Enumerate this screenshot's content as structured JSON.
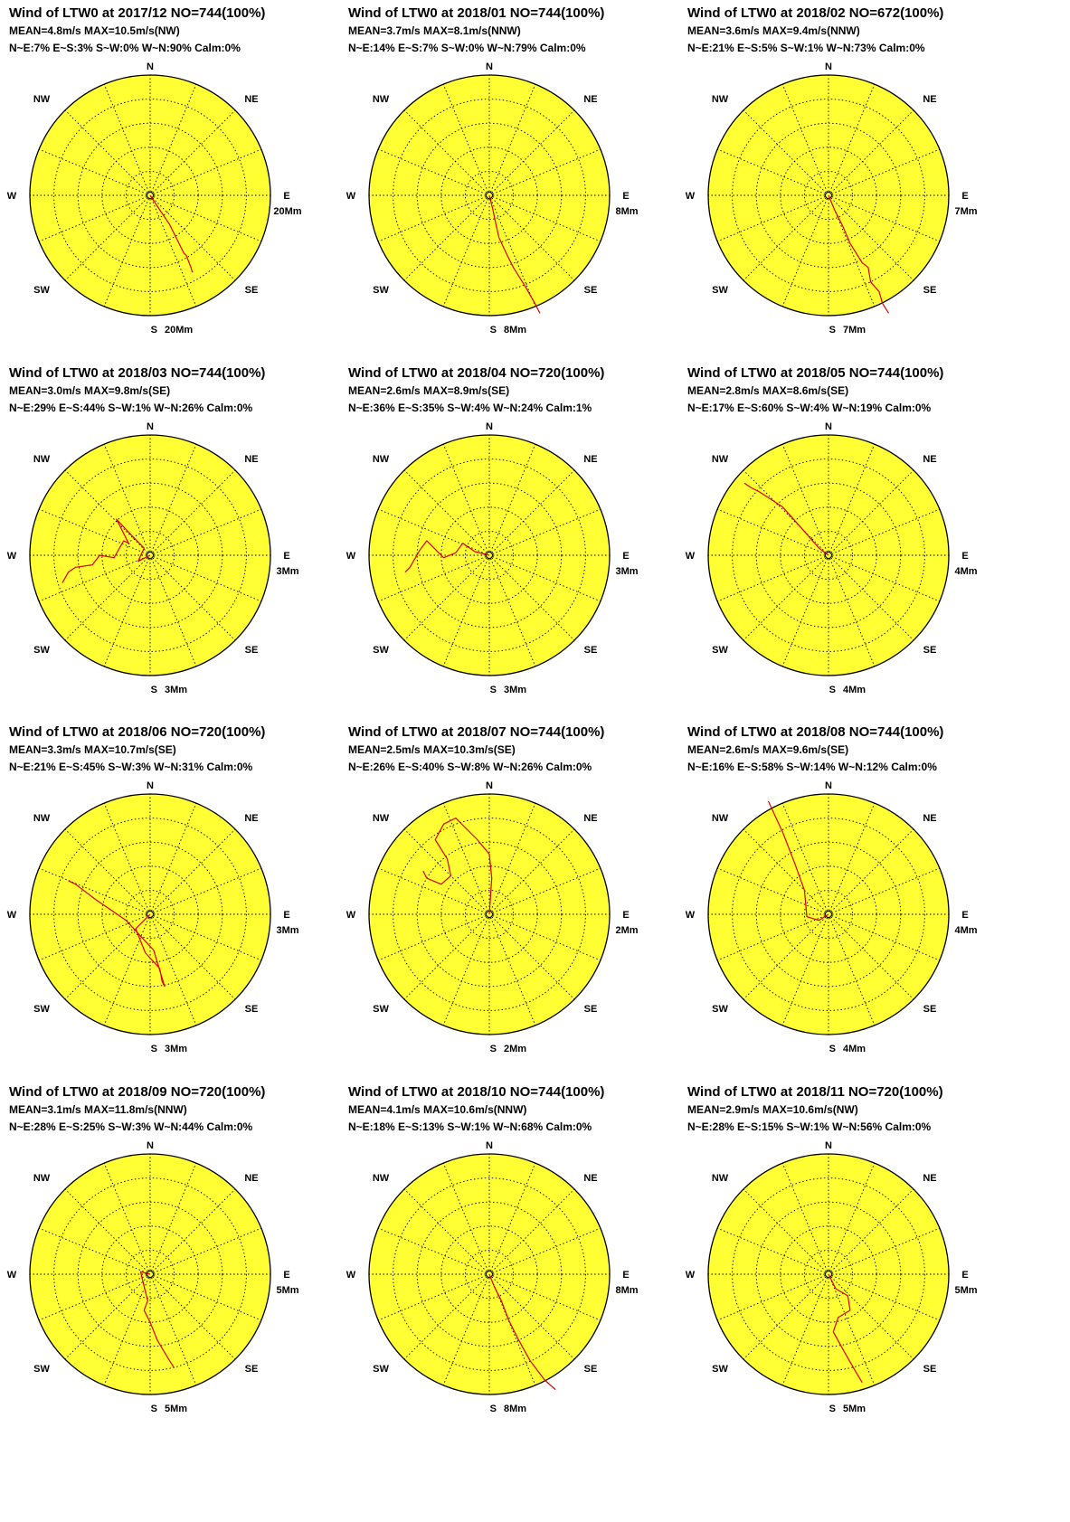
{
  "colors": {
    "rose_fill": "#ffff33",
    "rose_outline": "#000000",
    "grid": "#000000",
    "track": "#dd0000"
  },
  "directions": [
    "N",
    "NE",
    "E",
    "SE",
    "S",
    "SW",
    "W",
    "NW"
  ],
  "chart_data": [
    {
      "type": "polar-wind-run",
      "title": "Wind of LTW0 at 2017/12 NO=744(100%)",
      "stats": "MEAN=4.8m/s MAX=10.5m/s(NW)",
      "quadrants": "N~E:7% E~S:3% S~W:0% W~N:90% Calm:0%",
      "scale_label": "20Mm",
      "track": [
        [
          0,
          0
        ],
        [
          0.08,
          -0.12
        ],
        [
          0.16,
          -0.24
        ],
        [
          0.22,
          -0.36
        ],
        [
          0.28,
          -0.48
        ],
        [
          0.3,
          -0.5
        ],
        [
          0.34,
          -0.6
        ],
        [
          0.35,
          -0.64
        ]
      ]
    },
    {
      "type": "polar-wind-run",
      "title": "Wind of LTW0 at 2018/01 NO=744(100%)",
      "stats": "MEAN=3.7m/s MAX=8.1m/s(NNW)",
      "quadrants": "N~E:14% E~S:7% S~W:0% W~N:79% Calm:0%",
      "scale_label": "8Mm",
      "track": [
        [
          0,
          0
        ],
        [
          0.03,
          -0.12
        ],
        [
          0.05,
          -0.22
        ],
        [
          0.08,
          -0.35
        ],
        [
          0.15,
          -0.5
        ],
        [
          0.2,
          -0.6
        ],
        [
          0.3,
          -0.76
        ],
        [
          0.38,
          -0.9
        ],
        [
          0.42,
          -0.98
        ]
      ]
    },
    {
      "type": "polar-wind-run",
      "title": "Wind of LTW0 at 2018/02 NO=672(100%)",
      "stats": "MEAN=3.6m/s MAX=9.4m/s(NNW)",
      "quadrants": "N~E:21% E~S:5% S~W:1% W~N:73% Calm:0%",
      "scale_label": "7Mm",
      "track": [
        [
          0,
          0
        ],
        [
          0.05,
          -0.12
        ],
        [
          0.12,
          -0.26
        ],
        [
          0.18,
          -0.4
        ],
        [
          0.28,
          -0.56
        ],
        [
          0.33,
          -0.6
        ],
        [
          0.35,
          -0.72
        ],
        [
          0.42,
          -0.8
        ],
        [
          0.45,
          -0.9
        ],
        [
          0.5,
          -0.98
        ]
      ]
    },
    {
      "type": "polar-wind-run",
      "title": "Wind of LTW0 at 2018/03 NO=744(100%)",
      "stats": "MEAN=3.0m/s MAX=9.8m/s(SE)",
      "quadrants": "N~E:29% E~S:44% S~W:1% W~N:26% Calm:0%",
      "scale_label": "3Mm",
      "track": [
        [
          0,
          0
        ],
        [
          -0.1,
          -0.05
        ],
        [
          -0.05,
          0.06
        ],
        [
          -0.15,
          0.16
        ],
        [
          -0.28,
          0.3
        ],
        [
          -0.18,
          0.1
        ],
        [
          -0.22,
          0.12
        ],
        [
          -0.3,
          -0.02
        ],
        [
          -0.42,
          0.0
        ],
        [
          -0.48,
          -0.08
        ],
        [
          -0.62,
          -0.1
        ],
        [
          -0.68,
          -0.14
        ],
        [
          -0.73,
          -0.23
        ]
      ]
    },
    {
      "type": "polar-wind-run",
      "title": "Wind of LTW0 at 2018/04 NO=720(100%)",
      "stats": "MEAN=2.6m/s MAX=8.9m/s(SE)",
      "quadrants": "N~E:36% E~S:35% S~W:4% W~N:24% Calm:1%",
      "scale_label": "3Mm",
      "track": [
        [
          0,
          0
        ],
        [
          -0.12,
          0.03
        ],
        [
          -0.22,
          0.1
        ],
        [
          -0.28,
          0.02
        ],
        [
          -0.38,
          -0.02
        ],
        [
          -0.52,
          0.12
        ],
        [
          -0.58,
          0.04
        ],
        [
          -0.66,
          -0.1
        ],
        [
          -0.7,
          -0.14
        ]
      ]
    },
    {
      "type": "polar-wind-run",
      "title": "Wind of LTW0 at 2018/05 NO=744(100%)",
      "stats": "MEAN=2.8m/s MAX=8.6m/s(SE)",
      "quadrants": "N~E:17% E~S:60% S~W:4% W~N:19% Calm:0%",
      "scale_label": "4Mm",
      "track": [
        [
          0,
          0
        ],
        [
          -0.08,
          0.06
        ],
        [
          -0.22,
          0.22
        ],
        [
          -0.38,
          0.4
        ],
        [
          -0.5,
          0.48
        ],
        [
          -0.58,
          0.53
        ],
        [
          -0.64,
          0.56
        ],
        [
          -0.7,
          0.6
        ]
      ]
    },
    {
      "type": "polar-wind-run",
      "title": "Wind of LTW0 at 2018/06 NO=720(100%)",
      "stats": "MEAN=3.3m/s MAX=10.7m/s(SE)",
      "quadrants": "N~E:21% E~S:45% S~W:3% W~N:31% Calm:0%",
      "scale_label": "3Mm",
      "track": [
        [
          0,
          0
        ],
        [
          -0.12,
          -0.12
        ],
        [
          -0.04,
          -0.32
        ],
        [
          0.08,
          -0.45
        ],
        [
          0.1,
          -0.56
        ],
        [
          0.12,
          -0.6
        ],
        [
          0.03,
          -0.3
        ],
        [
          -0.2,
          -0.05
        ],
        [
          -0.45,
          0.12
        ],
        [
          -0.62,
          0.25
        ],
        [
          -0.68,
          0.28
        ]
      ]
    },
    {
      "type": "polar-wind-run",
      "title": "Wind of LTW0 at 2018/07 NO=744(100%)",
      "stats": "MEAN=2.5m/s MAX=10.3m/s(SE)",
      "quadrants": "N~E:26% E~S:40% S~W:8% W~N:26% Calm:0%",
      "scale_label": "2Mm",
      "track": [
        [
          0,
          0
        ],
        [
          0.02,
          0.3
        ],
        [
          0.0,
          0.5
        ],
        [
          -0.1,
          0.62
        ],
        [
          -0.28,
          0.8
        ],
        [
          -0.38,
          0.75
        ],
        [
          -0.45,
          0.62
        ],
        [
          -0.35,
          0.46
        ],
        [
          -0.32,
          0.32
        ],
        [
          -0.4,
          0.25
        ],
        [
          -0.52,
          0.3
        ],
        [
          -0.55,
          0.36
        ]
      ]
    },
    {
      "type": "polar-wind-run",
      "title": "Wind of LTW0 at 2018/08 NO=744(100%)",
      "stats": "MEAN=2.6m/s MAX=9.6m/s(SE)",
      "quadrants": "N~E:16% E~S:58% S~W:14% W~N:12% Calm:0%",
      "scale_label": "4Mm",
      "track": [
        [
          0,
          0
        ],
        [
          -0.08,
          -0.05
        ],
        [
          -0.18,
          -0.02
        ],
        [
          -0.2,
          0.2
        ],
        [
          -0.28,
          0.42
        ],
        [
          -0.38,
          0.68
        ],
        [
          -0.5,
          0.94
        ]
      ]
    },
    {
      "type": "polar-wind-run",
      "title": "Wind of LTW0 at 2018/09 NO=720(100%)",
      "stats": "MEAN=3.1m/s MAX=11.8m/s(NNW)",
      "quadrants": "N~E:28% E~S:25% S~W:3% W~N:44% Calm:0%",
      "scale_label": "5Mm",
      "track": [
        [
          0,
          0
        ],
        [
          -0.08,
          0.02
        ],
        [
          -0.05,
          -0.1
        ],
        [
          -0.02,
          -0.22
        ],
        [
          -0.05,
          -0.3
        ],
        [
          0.0,
          -0.4
        ],
        [
          0.06,
          -0.55
        ],
        [
          0.15,
          -0.7
        ],
        [
          0.2,
          -0.78
        ]
      ]
    },
    {
      "type": "polar-wind-run",
      "title": "Wind of LTW0 at 2018/10 NO=744(100%)",
      "stats": "MEAN=4.1m/s MAX=10.6m/s(NNW)",
      "quadrants": "N~E:18% E~S:13% S~W:1% W~N:68% Calm:0%",
      "scale_label": "8Mm",
      "track": [
        [
          0,
          0
        ],
        [
          0.04,
          -0.1
        ],
        [
          0.1,
          -0.22
        ],
        [
          0.16,
          -0.38
        ],
        [
          0.24,
          -0.54
        ],
        [
          0.34,
          -0.72
        ],
        [
          0.46,
          -0.88
        ],
        [
          0.55,
          -0.96
        ]
      ]
    },
    {
      "type": "polar-wind-run",
      "title": "Wind of LTW0 at 2018/11 NO=720(100%)",
      "stats": "MEAN=2.9m/s MAX=10.6m/s(NW)",
      "quadrants": "N~E:28% E~S:15% S~W:1% W~N:56% Calm:0%",
      "scale_label": "5Mm",
      "track": [
        [
          0,
          0
        ],
        [
          0.06,
          -0.12
        ],
        [
          0.16,
          -0.18
        ],
        [
          0.18,
          -0.3
        ],
        [
          0.08,
          -0.36
        ],
        [
          0.04,
          -0.48
        ],
        [
          0.14,
          -0.66
        ],
        [
          0.22,
          -0.8
        ],
        [
          0.28,
          -0.9
        ]
      ]
    }
  ]
}
